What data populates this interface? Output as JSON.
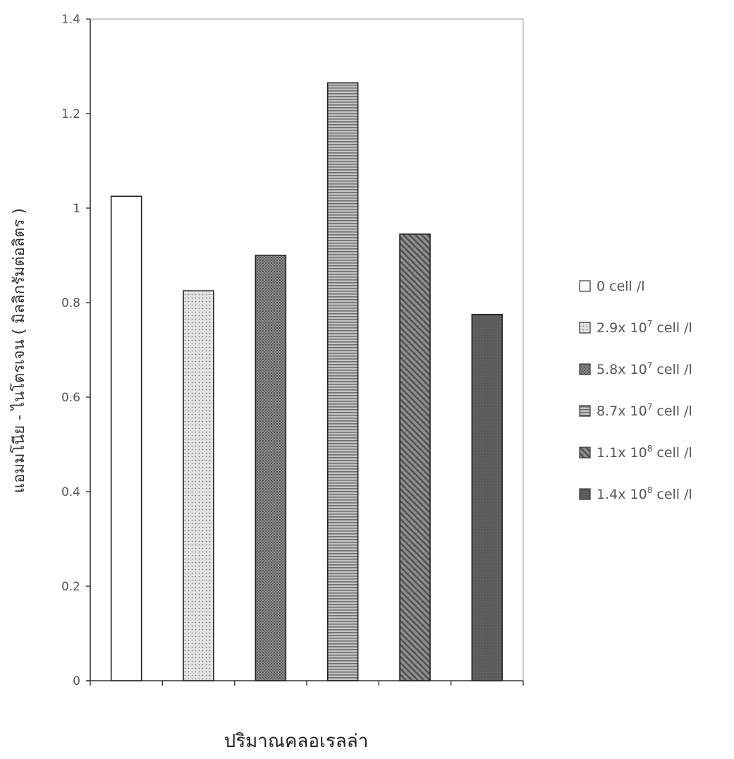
{
  "chart_data": {
    "type": "bar",
    "xlabel": "ปริมาณคลอเรลล่า",
    "ylabel": "แอมมโนีย - ไนโตรเจน ( มิลลิกรัมต่อลิตร )",
    "ylim": [
      0,
      1.4
    ],
    "yticks": [
      "0",
      "0.2",
      "0.4",
      "0.6",
      "0.8",
      "1",
      "1.2",
      "1.4"
    ],
    "grid": false,
    "legend_position": "right",
    "series": [
      {
        "name": "0 cell /l",
        "legend": {
          "prefix": "0",
          "suffix": " cell /l"
        },
        "value": 1.025,
        "pattern": "empty",
        "color": "#ffffff"
      },
      {
        "name": "2.9x 10^7 cell /l",
        "legend": {
          "prefix": "2.9x 10",
          "exp": "7",
          "suffix": " cell /l"
        },
        "value": 0.825,
        "pattern": "dots",
        "color": "#d8d8d8"
      },
      {
        "name": "5.8x 10^7 cell /l",
        "legend": {
          "prefix": "5.8x 10",
          "exp": "7",
          "suffix": " cell /l"
        },
        "value": 0.9,
        "pattern": "dense",
        "color": "#8c8c8c"
      },
      {
        "name": "8.7x 10^7 cell /l",
        "legend": {
          "prefix": "8.7x 10",
          "exp": "7",
          "suffix": " cell /l"
        },
        "value": 1.265,
        "pattern": "hlines",
        "color": "#b0b0b0"
      },
      {
        "name": "1.1x 10^8 cell /l",
        "legend": {
          "prefix": "1.1x 10",
          "exp": "8",
          "suffix": " cell /l"
        },
        "value": 0.945,
        "pattern": "diagonal",
        "color": "#7a7a7a"
      },
      {
        "name": "1.4x 10^8 cell /l",
        "legend": {
          "prefix": "1.4x 10",
          "exp": "8",
          "suffix": " cell /l"
        },
        "value": 0.775,
        "pattern": "solid",
        "color": "#5e5e5e"
      }
    ]
  }
}
